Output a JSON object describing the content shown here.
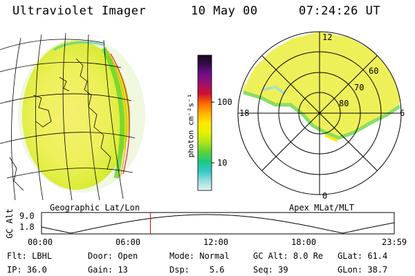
{
  "header": {
    "title": "Ultraviolet Imager",
    "date": "10 May 00",
    "time": "07:24:26 UT"
  },
  "left_panel": {
    "caption": "Geographic Lat/Lon"
  },
  "right_panel": {
    "caption": "Apex MLat/MLT",
    "mlt_labels": {
      "top": "12",
      "left": "18",
      "right": "6",
      "bottom": "0"
    },
    "lat_labels": [
      "60",
      "70",
      "80"
    ]
  },
  "colorbar": {
    "unit_label": "photon cm⁻²s⁻¹",
    "ticks": [
      {
        "label": "100",
        "value": 100
      },
      {
        "label": "10",
        "value": 10
      }
    ],
    "colors": [
      "#1a0a20",
      "#3a0a50",
      "#70108a",
      "#a0106a",
      "#d01030",
      "#ff6a00",
      "#ffb000",
      "#ffe800",
      "#e6f000",
      "#b0e61c",
      "#60d23a",
      "#20c882",
      "#30c8c8",
      "#9adcdc",
      "#e0f4f4"
    ]
  },
  "altitude_plot": {
    "ylabel": "GC Alt",
    "yticks": [
      "9.0",
      "1.8"
    ],
    "xticks": [
      "00:00",
      "06:00",
      "12:00",
      "18:00",
      "23:59"
    ],
    "current_time_hours": 7.407,
    "line_color": "#cc0000"
  },
  "info": [
    {
      "key": "Flt:",
      "value": "LBHL"
    },
    {
      "key": "IP:",
      "value": "36.0"
    },
    {
      "key": "Door:",
      "value": "Open"
    },
    {
      "key": "Gain:",
      "value": "13"
    },
    {
      "key": "Mode:",
      "value": "Normal"
    },
    {
      "key": "Dsp:",
      "value": "5.6"
    },
    {
      "key": "GC Alt:",
      "value": "8.0 Re"
    },
    {
      "key": "Seq:",
      "value": "39"
    },
    {
      "key": "GLat:",
      "value": "61.4"
    },
    {
      "key": "GLon:",
      "value": "38.7"
    }
  ]
}
